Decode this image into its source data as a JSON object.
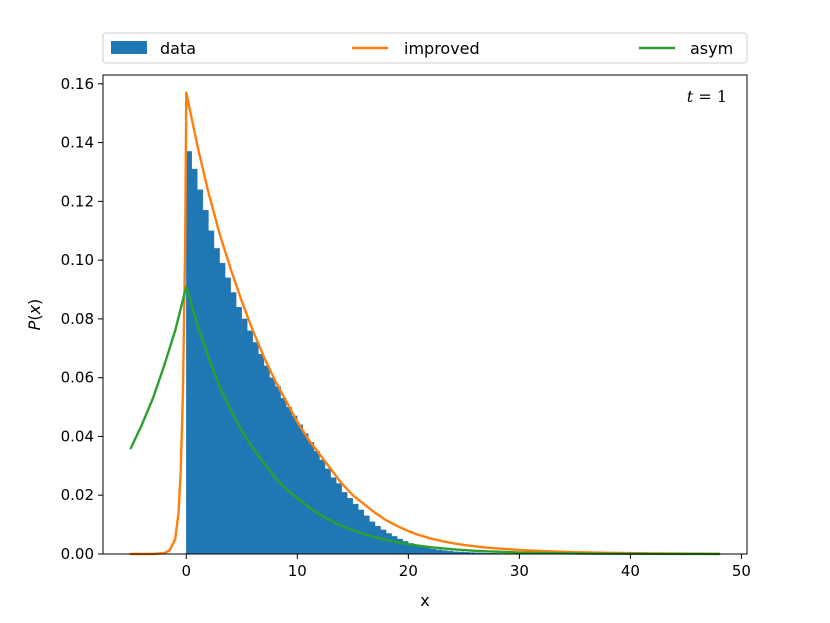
{
  "chart_data": {
    "type": "bar",
    "title": "",
    "annotation": "t = 1",
    "xlabel": "x",
    "ylabel": "P(x)",
    "xlim": [
      -7.5,
      50.5
    ],
    "ylim": [
      0,
      0.163
    ],
    "xticks": [
      0,
      10,
      20,
      30,
      40,
      50
    ],
    "yticks": [
      0.0,
      0.02,
      0.04,
      0.06,
      0.08,
      0.1,
      0.12,
      0.14,
      0.16
    ],
    "grid": false,
    "legend": {
      "position": "top",
      "entries": [
        "data",
        "improved",
        "asym"
      ]
    },
    "colors": {
      "data": "#1f77b4",
      "improved": "#ff7f0e",
      "asym": "#2ca02c"
    },
    "histogram": {
      "name": "data",
      "bin_width": 0.5,
      "bins_start": [
        0.0,
        0.5,
        1.0,
        1.5,
        2.0,
        2.5,
        3.0,
        3.5,
        4.0,
        4.5,
        5.0,
        5.5,
        6.0,
        6.5,
        7.0,
        7.5,
        8.0,
        8.5,
        9.0,
        9.5,
        10.0,
        10.5,
        11.0,
        11.5,
        12.0,
        12.5,
        13.0,
        13.5,
        14.0,
        14.5,
        15.0,
        15.5,
        16.0,
        16.5,
        17.0,
        17.5,
        18.0,
        18.5,
        19.0,
        19.5,
        20.0,
        20.5,
        21.0,
        21.5,
        22.0,
        22.5,
        23.0,
        23.5,
        24.0,
        24.5,
        25.0,
        25.5,
        26.0,
        26.5,
        27.0,
        27.5,
        28.0,
        28.5,
        29.0,
        29.5,
        30.0,
        31.0,
        32.0,
        33.0,
        34.0,
        35.0,
        36.0,
        38.0,
        40.0,
        42.0,
        44.0,
        46.0
      ],
      "values": [
        0.137,
        0.131,
        0.124,
        0.117,
        0.11,
        0.104,
        0.099,
        0.094,
        0.089,
        0.084,
        0.08,
        0.076,
        0.072,
        0.068,
        0.064,
        0.06,
        0.057,
        0.053,
        0.05,
        0.047,
        0.044,
        0.041,
        0.038,
        0.035,
        0.032,
        0.029,
        0.026,
        0.024,
        0.021,
        0.019,
        0.017,
        0.015,
        0.013,
        0.011,
        0.0095,
        0.0082,
        0.007,
        0.006,
        0.0051,
        0.0043,
        0.0036,
        0.003,
        0.0025,
        0.0021,
        0.0017,
        0.0014,
        0.0012,
        0.001,
        0.0008,
        0.0007,
        0.0006,
        0.0005,
        0.0004,
        0.00035,
        0.0003,
        0.00025,
        0.0002,
        0.00018,
        0.00015,
        0.00012,
        0.0001,
        8e-05,
        6e-05,
        5e-05,
        4e-05,
        3e-05,
        2e-05,
        1.5e-05,
        1e-05,
        8e-06,
        5e-06,
        3e-06
      ]
    },
    "series": [
      {
        "name": "improved",
        "x": [
          -5,
          -3,
          -2,
          -1.5,
          -1,
          -0.7,
          -0.5,
          -0.3,
          -0.1,
          0,
          1,
          2,
          3,
          4,
          5,
          6,
          7,
          8,
          9,
          10,
          11,
          12,
          13,
          14,
          15,
          16,
          17,
          18,
          19,
          20,
          21,
          22,
          23,
          24,
          25,
          26,
          27,
          28,
          30,
          32,
          35,
          38,
          42,
          46,
          48
        ],
        "y": [
          0.0,
          0.0,
          0.0003,
          0.0012,
          0.005,
          0.014,
          0.028,
          0.055,
          0.105,
          0.157,
          0.139,
          0.123,
          0.109,
          0.097,
          0.086,
          0.076,
          0.067,
          0.059,
          0.052,
          0.045,
          0.039,
          0.034,
          0.029,
          0.024,
          0.02,
          0.017,
          0.014,
          0.0115,
          0.0095,
          0.0078,
          0.0064,
          0.0053,
          0.0044,
          0.0037,
          0.0031,
          0.0026,
          0.0022,
          0.0019,
          0.0014,
          0.001,
          0.0006,
          0.0004,
          0.0002,
          0.0001,
          0.0
        ]
      },
      {
        "name": "asym",
        "x": [
          -5,
          -4,
          -3,
          -2,
          -1,
          0,
          1,
          2,
          3,
          4,
          5,
          6,
          7,
          8,
          9,
          10,
          11,
          12,
          13,
          14,
          15,
          16,
          17,
          18,
          19,
          20,
          22,
          24,
          26,
          28,
          30,
          33,
          36,
          40,
          44,
          48
        ],
        "y": [
          0.036,
          0.044,
          0.053,
          0.064,
          0.076,
          0.091,
          0.078,
          0.067,
          0.057,
          0.049,
          0.042,
          0.036,
          0.031,
          0.026,
          0.022,
          0.019,
          0.016,
          0.0135,
          0.0114,
          0.0096,
          0.0081,
          0.0068,
          0.0057,
          0.0048,
          0.004,
          0.0033,
          0.0023,
          0.0016,
          0.0011,
          0.0008,
          0.0005,
          0.0003,
          0.00015,
          6e-05,
          2e-05,
          1e-05
        ]
      }
    ]
  }
}
